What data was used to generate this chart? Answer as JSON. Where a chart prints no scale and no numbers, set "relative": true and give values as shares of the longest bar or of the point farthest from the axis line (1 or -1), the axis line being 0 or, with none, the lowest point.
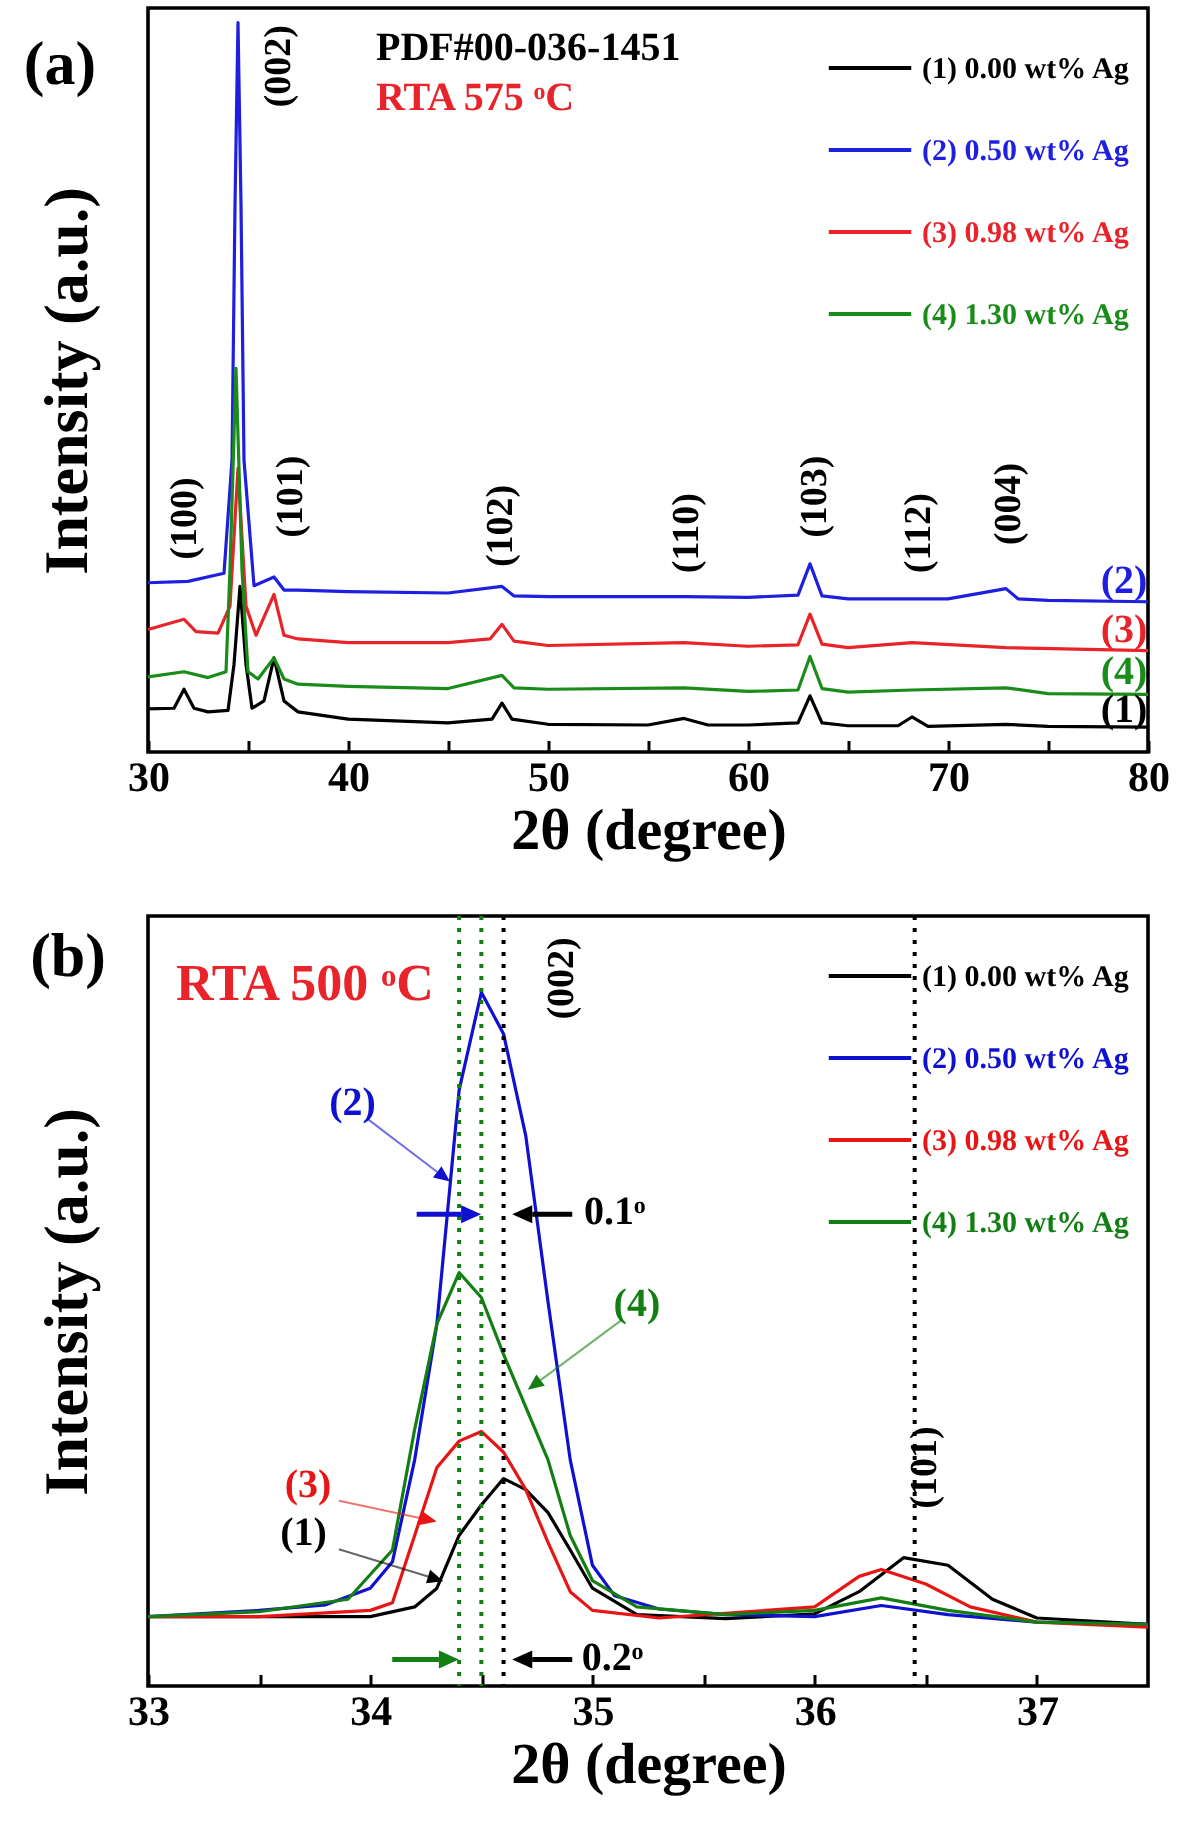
{
  "chart_data": [
    {
      "type": "line",
      "title": "(a)",
      "xlabel": "2θ (degree)",
      "ylabel": "Intensity (a.u.)",
      "relative": true,
      "xlim": [
        30,
        80
      ],
      "xticks": [
        30,
        {
          "value": 35,
          "label": null
        },
        40,
        {
          "value": 45,
          "label": null
        },
        50,
        {
          "value": 55,
          "label": null
        },
        60,
        {
          "value": 65,
          "label": null
        },
        70,
        {
          "value": 75,
          "label": null
        },
        80
      ],
      "legend": "top right",
      "grid": false,
      "marker": "none",
      "line_style": "solid",
      "series": [
        {
          "name": "(1) 0.00 wt% Ag",
          "color": "#000000",
          "x": [
            30,
            31.3,
            31.8,
            32.3,
            33,
            34.0,
            34.3,
            34.6,
            34.9,
            35.2,
            35.8,
            36.3,
            36.8,
            37.5,
            40,
            45,
            47.2,
            47.7,
            48.2,
            50,
            55,
            56.8,
            58,
            60,
            62.5,
            63.1,
            63.7,
            65,
            67.5,
            68.2,
            69,
            72.9,
            75,
            80
          ],
          "values": [
            0.059,
            0.06,
            0.086,
            0.06,
            0.055,
            0.057,
            0.12,
            0.227,
            0.12,
            0.06,
            0.07,
            0.129,
            0.07,
            0.055,
            0.045,
            0.04,
            0.045,
            0.067,
            0.045,
            0.038,
            0.037,
            0.046,
            0.037,
            0.037,
            0.04,
            0.077,
            0.04,
            0.036,
            0.036,
            0.048,
            0.035,
            0.038,
            0.035,
            0.034
          ]
        },
        {
          "name": "(2) 0.50 wt% Ag",
          "color": "#1f1fe0",
          "x": [
            30,
            32,
            33.8,
            34.2,
            34.35,
            34.5,
            34.65,
            34.8,
            35.3,
            36.3,
            36.8,
            37.5,
            40,
            45,
            47.7,
            48.3,
            50,
            56.8,
            60,
            62.5,
            63.1,
            63.7,
            65,
            70,
            72.9,
            73.5,
            75,
            80
          ],
          "values": [
            0.232,
            0.234,
            0.245,
            0.4,
            0.75,
            1.0,
            0.75,
            0.4,
            0.228,
            0.24,
            0.222,
            0.222,
            0.22,
            0.218,
            0.227,
            0.214,
            0.213,
            0.213,
            0.212,
            0.215,
            0.258,
            0.214,
            0.21,
            0.21,
            0.224,
            0.21,
            0.208,
            0.206
          ]
        },
        {
          "name": "(3) 0.98 wt% Ag",
          "color": "#e8242a",
          "x": [
            30,
            31.8,
            32.4,
            33.5,
            34.1,
            34.5,
            34.9,
            35.4,
            36.3,
            36.8,
            37.5,
            40,
            45,
            47.1,
            47.7,
            48.3,
            50,
            56.8,
            60,
            62.5,
            63.1,
            63.7,
            65,
            68.2,
            72.9,
            80
          ],
          "values": [
            0.168,
            0.182,
            0.165,
            0.163,
            0.2,
            0.389,
            0.2,
            0.16,
            0.216,
            0.16,
            0.155,
            0.15,
            0.15,
            0.155,
            0.175,
            0.152,
            0.146,
            0.15,
            0.145,
            0.147,
            0.189,
            0.148,
            0.143,
            0.15,
            0.143,
            0.139
          ]
        },
        {
          "name": "(4) 1.30 wt% Ag",
          "color": "#1a8c1a",
          "x": [
            30,
            31.8,
            33,
            33.9,
            34.1,
            34.4,
            34.7,
            35.0,
            35.5,
            36.3,
            36.8,
            37.5,
            40,
            45,
            47.7,
            48.3,
            50,
            56.8,
            60,
            62.5,
            63.1,
            63.7,
            65,
            68.2,
            72.9,
            75,
            80
          ],
          "values": [
            0.103,
            0.11,
            0.102,
            0.11,
            0.25,
            0.526,
            0.25,
            0.11,
            0.1,
            0.129,
            0.1,
            0.093,
            0.09,
            0.087,
            0.105,
            0.088,
            0.086,
            0.088,
            0.083,
            0.085,
            0.131,
            0.087,
            0.082,
            0.085,
            0.088,
            0.08,
            0.079
          ]
        }
      ],
      "annotations": [
        "PDF#00-036-1451",
        "RTA 575 ᵒC",
        "(100)",
        "(002)",
        "(101)",
        "(102)",
        "(110)",
        "(103)",
        "(112)",
        "(004)",
        "(2)",
        "(3)",
        "(4)",
        "(1)"
      ]
    },
    {
      "type": "line",
      "title": "(b)",
      "xlabel": "2θ (degree)",
      "ylabel": "Intensity (a.u.)",
      "relative": true,
      "xlim": [
        33,
        37.5
      ],
      "xticks": [
        33,
        {
          "value": 33.5,
          "label": null
        },
        34,
        {
          "value": 34.5,
          "label": null
        },
        35,
        {
          "value": 35.5,
          "label": null
        },
        36,
        {
          "value": 36.5,
          "label": null
        },
        37
      ],
      "legend": "top right",
      "grid": false,
      "marker": "none",
      "line_style": "solid",
      "series": [
        {
          "name": "(1) 0.00 wt% Ag",
          "color": "#000000",
          "x": [
            33,
            33.5,
            34.0,
            34.2,
            34.3,
            34.4,
            34.5,
            34.6,
            34.7,
            34.8,
            34.9,
            35.0,
            35.2,
            35.6,
            36.0,
            36.2,
            36.4,
            36.6,
            36.8,
            37.0,
            37.5
          ],
          "values": [
            0.1,
            0.1,
            0.1,
            0.114,
            0.141,
            0.217,
            0.261,
            0.299,
            0.283,
            0.25,
            0.196,
            0.141,
            0.103,
            0.097,
            0.104,
            0.136,
            0.185,
            0.174,
            0.125,
            0.098,
            0.089
          ]
        },
        {
          "name": "(2) 0.50 wt% Ag",
          "color": "#1010d0",
          "x": [
            33,
            33.5,
            33.8,
            34.0,
            34.1,
            34.2,
            34.3,
            34.4,
            34.5,
            34.6,
            34.7,
            34.8,
            34.9,
            35.0,
            35.1,
            35.3,
            35.6,
            36.0,
            36.3,
            36.6,
            37.0,
            37.5
          ],
          "values": [
            0.1,
            0.109,
            0.117,
            0.141,
            0.179,
            0.326,
            0.522,
            0.859,
            1.0,
            0.94,
            0.793,
            0.554,
            0.326,
            0.174,
            0.13,
            0.111,
            0.103,
            0.1,
            0.116,
            0.103,
            0.092,
            0.089
          ]
        },
        {
          "name": "(3) 0.98 wt% Ag",
          "color": "#e81515",
          "x": [
            33,
            33.5,
            34.0,
            34.1,
            34.2,
            34.3,
            34.4,
            34.5,
            34.6,
            34.7,
            34.8,
            34.9,
            35.0,
            35.3,
            36.0,
            36.2,
            36.3,
            36.5,
            36.7,
            37.0,
            37.5
          ],
          "values": [
            0.1,
            0.1,
            0.109,
            0.12,
            0.217,
            0.315,
            0.353,
            0.367,
            0.337,
            0.283,
            0.207,
            0.136,
            0.109,
            0.098,
            0.114,
            0.158,
            0.168,
            0.147,
            0.114,
            0.092,
            0.085
          ]
        },
        {
          "name": "(4) 1.30 wt% Ag",
          "color": "#137f13",
          "x": [
            33,
            33.5,
            33.9,
            34.1,
            34.2,
            34.3,
            34.4,
            34.5,
            34.6,
            34.7,
            34.8,
            34.9,
            35.0,
            35.2,
            35.6,
            36.0,
            36.3,
            36.6,
            37.0,
            37.5
          ],
          "values": [
            0.1,
            0.107,
            0.125,
            0.196,
            0.37,
            0.522,
            0.596,
            0.56,
            0.478,
            0.402,
            0.326,
            0.217,
            0.152,
            0.114,
            0.103,
            0.109,
            0.127,
            0.109,
            0.092,
            0.089
          ]
        }
      ],
      "ref_lines": [
        {
          "axis": "x",
          "value": 34.6,
          "label": null,
          "color": "#000000",
          "line_style": "dotted"
        },
        {
          "axis": "x",
          "value": 34.5,
          "label": null,
          "color": "#137f13",
          "line_style": "dotted"
        },
        {
          "axis": "x",
          "value": 34.4,
          "label": null,
          "color": "#137f13",
          "line_style": "dotted"
        },
        {
          "axis": "x",
          "value": 36.45,
          "label": null,
          "color": "#000000",
          "line_style": "dotted"
        }
      ],
      "annotations": [
        "RTA 500 ᵒC",
        "(002)",
        "(101)",
        "(2)",
        "(4)",
        "(3)",
        "(1)",
        "0.1ᵒ",
        "0.2ᵒ"
      ]
    }
  ]
}
